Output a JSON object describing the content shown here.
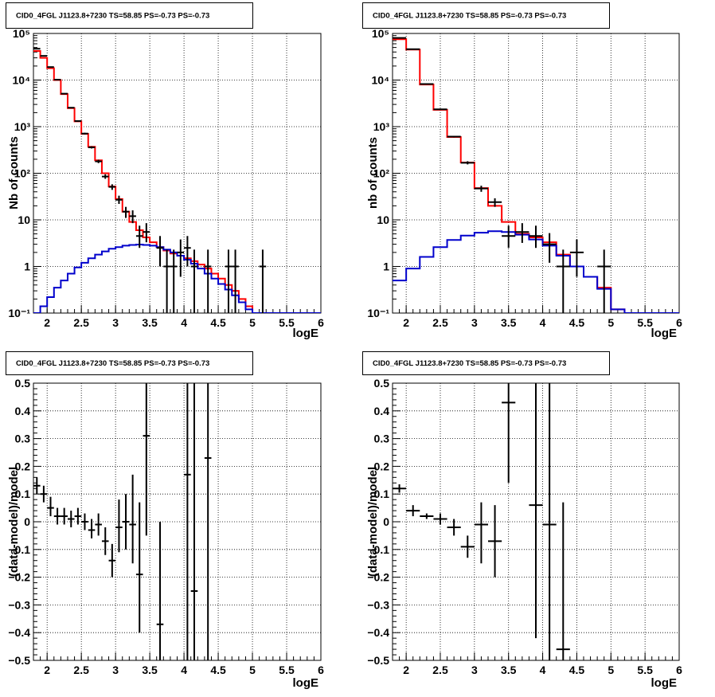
{
  "chart_data": [
    {
      "id": "counts-left",
      "type": "line",
      "title": "CID0_4FGL J1123.8+7230 TS=58.85 PS=-0.73 PS=-0.73",
      "xlabel": "logE",
      "ylabel": "Nb of counts",
      "xlim": [
        1.8,
        6.0
      ],
      "ylim": [
        0.1,
        100000
      ],
      "yscale": "log",
      "grid": true,
      "x_ticks": [
        "2",
        "2.5",
        "3",
        "3.5",
        "4",
        "4.5",
        "5",
        "5.5",
        "6"
      ],
      "y_ticks": [
        "10⁻¹",
        "1",
        "10",
        "10²",
        "10³",
        "10⁴",
        "10⁵"
      ],
      "bin_edges": [
        1.8,
        1.9,
        2.0,
        2.1,
        2.2,
        2.3,
        2.4,
        2.5,
        2.6,
        2.7,
        2.8,
        2.9,
        3.0,
        3.1,
        3.2,
        3.3,
        3.4,
        3.5,
        3.6,
        3.7,
        3.8,
        3.9,
        4.0,
        4.1,
        4.2,
        4.3,
        4.4,
        4.5,
        4.6,
        4.7,
        4.8,
        4.9,
        5.0,
        5.1,
        5.2,
        5.3,
        5.4,
        5.5,
        5.6,
        5.7,
        5.8,
        5.9,
        6.0
      ],
      "series": [
        {
          "role": "total-model",
          "color": "#ff0000",
          "values": [
            42000,
            30000,
            18000,
            10000,
            5000,
            2500,
            1300,
            700,
            370,
            190,
            100,
            52,
            28,
            15,
            9,
            6,
            4.2,
            3.3,
            2.6,
            2.2,
            1.9,
            1.7,
            1.5,
            1.3,
            1.1,
            0.9,
            0.7,
            0.55,
            0.4,
            0.3,
            0.2,
            0.14,
            0.1,
            0.1,
            0.1,
            0.1,
            0.1,
            0.1,
            0.1,
            0.1,
            0.1,
            0.1
          ]
        },
        {
          "role": "source-model",
          "color": "#0000cc",
          "values": [
            0.1,
            0.14,
            0.22,
            0.35,
            0.5,
            0.7,
            0.95,
            1.2,
            1.5,
            1.8,
            2.1,
            2.4,
            2.6,
            2.8,
            2.9,
            2.95,
            2.9,
            2.8,
            2.6,
            2.3,
            2.0,
            1.7,
            1.4,
            1.15,
            0.9,
            0.7,
            0.55,
            0.42,
            0.32,
            0.24,
            0.17,
            0.12,
            0.1,
            0.1,
            0.1,
            0.1,
            0.1,
            0.1,
            0.1,
            0.1,
            0.1,
            0.1
          ]
        }
      ],
      "points": [
        {
          "x": 1.85,
          "y": 47000,
          "ylo": 46500,
          "yhi": 47500
        },
        {
          "x": 1.95,
          "y": 33000,
          "ylo": 32600,
          "yhi": 33400
        },
        {
          "x": 2.05,
          "y": 19000,
          "ylo": 18700,
          "yhi": 19300
        },
        {
          "x": 2.15,
          "y": 10200,
          "ylo": 10000,
          "yhi": 10400
        },
        {
          "x": 2.25,
          "y": 5100,
          "ylo": 5000,
          "yhi": 5200
        },
        {
          "x": 2.35,
          "y": 2550,
          "ylo": 2500,
          "yhi": 2600
        },
        {
          "x": 2.45,
          "y": 1320,
          "ylo": 1280,
          "yhi": 1360
        },
        {
          "x": 2.55,
          "y": 710,
          "ylo": 680,
          "yhi": 740
        },
        {
          "x": 2.65,
          "y": 360,
          "ylo": 340,
          "yhi": 380
        },
        {
          "x": 2.75,
          "y": 180,
          "ylo": 165,
          "yhi": 195
        },
        {
          "x": 2.85,
          "y": 85,
          "ylo": 76,
          "yhi": 95
        },
        {
          "x": 2.95,
          "y": 51,
          "ylo": 44,
          "yhi": 58
        },
        {
          "x": 3.05,
          "y": 27,
          "ylo": 22,
          "yhi": 33
        },
        {
          "x": 3.15,
          "y": 15,
          "ylo": 11,
          "yhi": 19
        },
        {
          "x": 3.25,
          "y": 12,
          "ylo": 8.5,
          "yhi": 16
        },
        {
          "x": 3.35,
          "y": 4.5,
          "ylo": 2.5,
          "yhi": 7.5
        },
        {
          "x": 3.45,
          "y": 5.5,
          "ylo": 3.3,
          "yhi": 8.5
        },
        {
          "x": 3.65,
          "y": 2.5,
          "ylo": 1.0,
          "yhi": 4.5
        },
        {
          "x": 3.75,
          "y": 1.0,
          "ylo": 0.1,
          "yhi": 2.3
        },
        {
          "x": 3.85,
          "y": 1.0,
          "ylo": 0.1,
          "yhi": 2.3
        },
        {
          "x": 3.95,
          "y": 2.0,
          "ylo": 0.6,
          "yhi": 3.8
        },
        {
          "x": 4.05,
          "y": 2.5,
          "ylo": 1.0,
          "yhi": 4.5
        },
        {
          "x": 4.15,
          "y": 1.0,
          "ylo": 0.1,
          "yhi": 2.3
        },
        {
          "x": 4.35,
          "y": 1.0,
          "ylo": 0.1,
          "yhi": 2.3
        },
        {
          "x": 4.65,
          "y": 1.0,
          "ylo": 0.1,
          "yhi": 2.3
        },
        {
          "x": 4.75,
          "y": 1.0,
          "ylo": 0.1,
          "yhi": 2.3
        },
        {
          "x": 5.15,
          "y": 1.0,
          "ylo": 0.1,
          "yhi": 2.3
        }
      ]
    },
    {
      "id": "counts-right",
      "type": "line",
      "title": "CID0_4FGL J1123.8+7230 TS=58.85 PS=-0.73 PS=-0.73",
      "xlabel": "logE",
      "ylabel": "nb of counts",
      "xlim": [
        1.8,
        6.0
      ],
      "ylim": [
        0.1,
        100000
      ],
      "yscale": "log",
      "grid": true,
      "x_ticks": [
        "2",
        "2.5",
        "3",
        "3.5",
        "4",
        "4.5",
        "5",
        "5.5",
        "6"
      ],
      "y_ticks": [
        "10⁻¹",
        "1",
        "10",
        "10²",
        "10³",
        "10⁴",
        "10⁵"
      ],
      "bin_edges": [
        1.8,
        2.0,
        2.2,
        2.4,
        2.6,
        2.8,
        3.0,
        3.2,
        3.4,
        3.6,
        3.8,
        4.0,
        4.2,
        4.4,
        4.6,
        4.8,
        5.0,
        5.2,
        5.4,
        5.6,
        5.8,
        6.0
      ],
      "series": [
        {
          "role": "total-model",
          "color": "#ff0000",
          "values": [
            75000,
            45000,
            8000,
            2300,
            600,
            170,
            48,
            20,
            9,
            5,
            4.2,
            3.3,
            1.8,
            1.0,
            0.6,
            0.35,
            0.12,
            0.1,
            0.1,
            0.1,
            0.1
          ]
        },
        {
          "role": "source-model",
          "color": "#0000cc",
          "values": [
            0.5,
            0.9,
            1.6,
            2.6,
            3.7,
            4.6,
            5.3,
            5.7,
            5.5,
            4.8,
            3.8,
            2.8,
            1.7,
            1.0,
            0.6,
            0.33,
            0.12,
            0.1,
            0.1,
            0.1,
            0.1
          ]
        }
      ],
      "points": [
        {
          "x": 1.9,
          "y": 80000,
          "ylo": 79000,
          "yhi": 81000
        },
        {
          "x": 2.1,
          "y": 46000,
          "ylo": 45500,
          "yhi": 46500
        },
        {
          "x": 2.3,
          "y": 8200,
          "ylo": 8000,
          "yhi": 8400
        },
        {
          "x": 2.5,
          "y": 2350,
          "ylo": 2300,
          "yhi": 2400
        },
        {
          "x": 2.7,
          "y": 610,
          "ylo": 585,
          "yhi": 635
        },
        {
          "x": 2.9,
          "y": 168,
          "ylo": 155,
          "yhi": 181
        },
        {
          "x": 3.1,
          "y": 47,
          "ylo": 40,
          "yhi": 54
        },
        {
          "x": 3.3,
          "y": 24,
          "ylo": 19,
          "yhi": 29
        },
        {
          "x": 3.5,
          "y": 4.5,
          "ylo": 2.5,
          "yhi": 7.5
        },
        {
          "x": 3.7,
          "y": 5.5,
          "ylo": 3.2,
          "yhi": 8.5
        },
        {
          "x": 3.9,
          "y": 4.5,
          "ylo": 2.5,
          "yhi": 7.5
        },
        {
          "x": 4.1,
          "y": 3.0,
          "ylo": 1.2,
          "yhi": 5.2
        },
        {
          "x": 4.3,
          "y": 1.0,
          "ylo": 0.1,
          "yhi": 2.3
        },
        {
          "x": 4.5,
          "y": 2.0,
          "ylo": 0.6,
          "yhi": 3.8
        },
        {
          "x": 4.9,
          "y": 1.0,
          "ylo": 0.1,
          "yhi": 2.3
        }
      ]
    },
    {
      "id": "residuals-left",
      "type": "scatter",
      "title": "CID0_4FGL J1123.8+7230 TS=58.85 PS=-0.73 PS=-0.73",
      "xlabel": "logE",
      "ylabel": "(data-model)/model",
      "xlim": [
        1.8,
        6.0
      ],
      "ylim": [
        -0.5,
        0.5
      ],
      "yscale": "linear",
      "grid": true,
      "x_ticks": [
        "2",
        "2.5",
        "3",
        "3.5",
        "4",
        "4.5",
        "5",
        "5.5",
        "6"
      ],
      "y_ticks": [
        "−0.5",
        "−0.4",
        "−0.3",
        "−0.2",
        "−0.1",
        "0",
        "0.1",
        "0.2",
        "0.3",
        "0.4",
        "0.5"
      ],
      "bin_width": 0.1,
      "points": [
        {
          "x": 1.85,
          "y": 0.13,
          "ylo": 0.1,
          "yhi": 0.16
        },
        {
          "x": 1.95,
          "y": 0.1,
          "ylo": 0.07,
          "yhi": 0.13
        },
        {
          "x": 2.05,
          "y": 0.05,
          "ylo": 0.02,
          "yhi": 0.09
        },
        {
          "x": 2.15,
          "y": 0.02,
          "ylo": -0.01,
          "yhi": 0.05
        },
        {
          "x": 2.25,
          "y": 0.02,
          "ylo": -0.01,
          "yhi": 0.05
        },
        {
          "x": 2.35,
          "y": 0.01,
          "ylo": -0.02,
          "yhi": 0.04
        },
        {
          "x": 2.45,
          "y": 0.02,
          "ylo": -0.01,
          "yhi": 0.05
        },
        {
          "x": 2.55,
          "y": 0.0,
          "ylo": -0.03,
          "yhi": 0.03
        },
        {
          "x": 2.65,
          "y": -0.03,
          "ylo": -0.06,
          "yhi": 0.01
        },
        {
          "x": 2.75,
          "y": -0.01,
          "ylo": -0.05,
          "yhi": 0.03
        },
        {
          "x": 2.85,
          "y": -0.07,
          "ylo": -0.12,
          "yhi": -0.02
        },
        {
          "x": 2.95,
          "y": -0.14,
          "ylo": -0.2,
          "yhi": -0.08
        },
        {
          "x": 3.05,
          "y": -0.02,
          "ylo": -0.11,
          "yhi": 0.08
        },
        {
          "x": 3.15,
          "y": 0.0,
          "ylo": -0.1,
          "yhi": 0.1
        },
        {
          "x": 3.25,
          "y": -0.01,
          "ylo": -0.15,
          "yhi": 0.17
        },
        {
          "x": 3.35,
          "y": -0.19,
          "ylo": -0.4,
          "yhi": 0.07
        },
        {
          "x": 3.45,
          "y": 0.31,
          "ylo": -0.05,
          "yhi": 0.5
        },
        {
          "x": 3.65,
          "y": -0.37,
          "ylo": -0.5,
          "yhi": 0.0
        },
        {
          "x": 4.05,
          "y": 0.17,
          "ylo": -0.5,
          "yhi": 0.5
        },
        {
          "x": 4.15,
          "y": -0.25,
          "ylo": -0.5,
          "yhi": 0.5
        },
        {
          "x": 4.35,
          "y": 0.23,
          "ylo": -0.5,
          "yhi": 0.5
        }
      ]
    },
    {
      "id": "residuals-right",
      "type": "scatter",
      "title": "CID0_4FGL J1123.8+7230 TS=58.85 PS=-0.73 PS=-0.73",
      "xlabel": "logE",
      "ylabel": "(data-model)/model",
      "xlim": [
        1.8,
        6.0
      ],
      "ylim": [
        -0.5,
        0.5
      ],
      "yscale": "linear",
      "grid": true,
      "x_ticks": [
        "2",
        "2.5",
        "3",
        "3.5",
        "4",
        "4.5",
        "5",
        "5.5",
        "6"
      ],
      "y_ticks": [
        "−0.5",
        "−0.4",
        "−0.3",
        "−0.2",
        "−0.1",
        "0",
        "0.1",
        "0.2",
        "0.3",
        "0.4",
        "0.5"
      ],
      "bin_width": 0.2,
      "points": [
        {
          "x": 1.9,
          "y": 0.12,
          "ylo": 0.105,
          "yhi": 0.135
        },
        {
          "x": 2.1,
          "y": 0.04,
          "ylo": 0.02,
          "yhi": 0.06
        },
        {
          "x": 2.3,
          "y": 0.02,
          "ylo": 0.01,
          "yhi": 0.03
        },
        {
          "x": 2.5,
          "y": 0.01,
          "ylo": -0.01,
          "yhi": 0.03
        },
        {
          "x": 2.7,
          "y": -0.02,
          "ylo": -0.05,
          "yhi": 0.01
        },
        {
          "x": 2.9,
          "y": -0.09,
          "ylo": -0.13,
          "yhi": -0.05
        },
        {
          "x": 3.1,
          "y": -0.01,
          "ylo": -0.15,
          "yhi": 0.07
        },
        {
          "x": 3.3,
          "y": -0.07,
          "ylo": -0.2,
          "yhi": 0.06
        },
        {
          "x": 3.5,
          "y": 0.43,
          "ylo": 0.14,
          "yhi": 0.5
        },
        {
          "x": 3.9,
          "y": 0.06,
          "ylo": -0.42,
          "yhi": 0.5
        },
        {
          "x": 4.1,
          "y": -0.01,
          "ylo": -0.5,
          "yhi": 0.5
        },
        {
          "x": 4.3,
          "y": -0.46,
          "ylo": -0.5,
          "yhi": 0.07
        }
      ]
    }
  ]
}
